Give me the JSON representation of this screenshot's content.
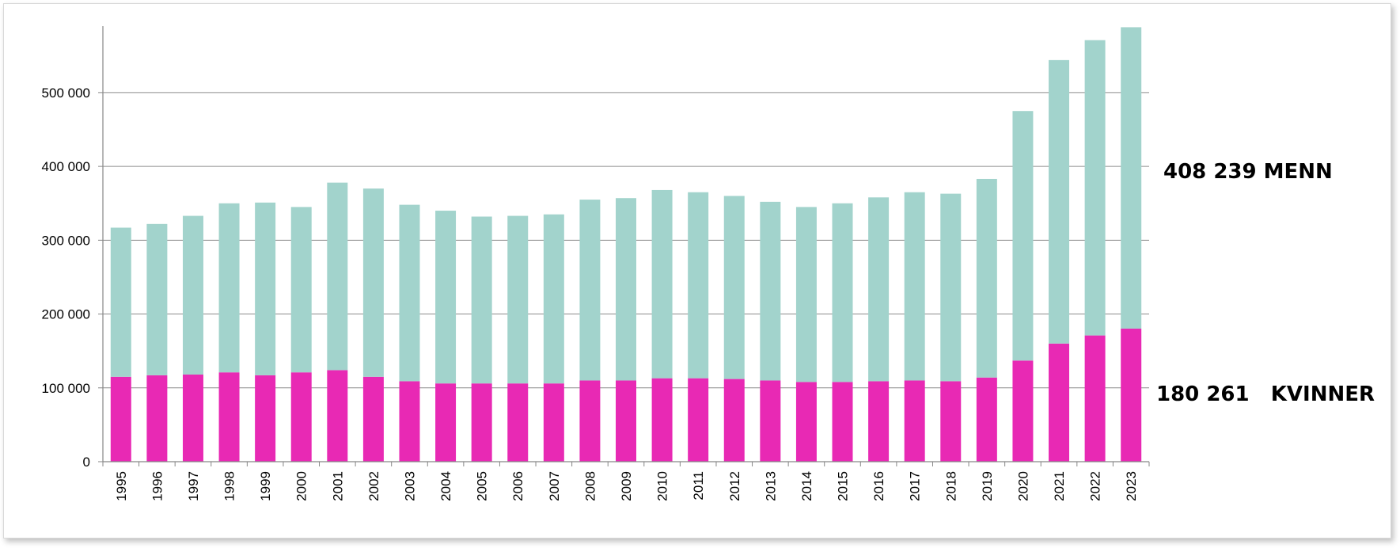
{
  "chart_data": {
    "type": "bar",
    "stacked": true,
    "title": "",
    "xlabel": "",
    "ylabel": "",
    "ylim": [
      0,
      590000
    ],
    "yticks": [
      0,
      100000,
      200000,
      300000,
      400000,
      500000
    ],
    "ytick_labels": [
      "0",
      "100 000",
      "200 000",
      "300 000",
      "400 000",
      "500 000"
    ],
    "grid": true,
    "categories": [
      "1995",
      "1996",
      "1997",
      "1998",
      "1999",
      "2000",
      "2001",
      "2002",
      "2003",
      "2004",
      "2005",
      "2006",
      "2007",
      "2008",
      "2009",
      "2010",
      "2011",
      "2012",
      "2013",
      "2014",
      "2015",
      "2016",
      "2017",
      "2018",
      "2019",
      "2020",
      "2021",
      "2022",
      "2023"
    ],
    "series": [
      {
        "name": "KVINNER",
        "color": "#e829b4",
        "values": [
          115000,
          117000,
          118000,
          121000,
          117000,
          121000,
          124000,
          115000,
          109000,
          106000,
          106000,
          106000,
          106000,
          110000,
          110000,
          113000,
          113000,
          112000,
          110000,
          108000,
          108000,
          109000,
          110000,
          109000,
          114000,
          137000,
          160000,
          171000,
          180261
        ]
      },
      {
        "name": "MENN",
        "color": "#a2d3cc",
        "values": [
          202000,
          205000,
          215000,
          229000,
          234000,
          224000,
          254000,
          255000,
          239000,
          234000,
          226000,
          227000,
          229000,
          245000,
          247000,
          255000,
          252000,
          248000,
          242000,
          237000,
          242000,
          249000,
          255000,
          254000,
          269000,
          338000,
          384000,
          400000,
          408239
        ]
      }
    ],
    "annotations": [
      {
        "text": "408 239 MENN",
        "series": "MENN"
      },
      {
        "text": "180 261   KVINNER",
        "series": "KVINNER"
      }
    ]
  }
}
